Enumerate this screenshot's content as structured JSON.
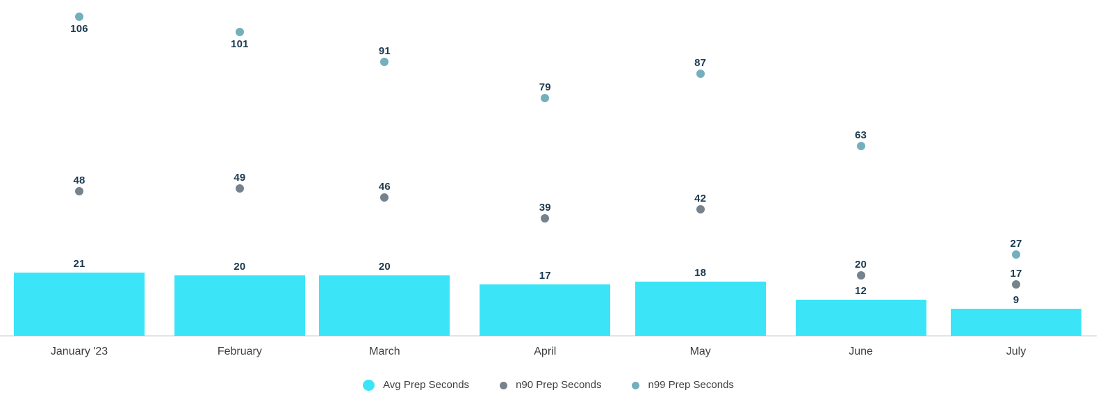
{
  "chart_data": {
    "type": "bar",
    "subtype": "combo-bar-with-points",
    "title": "",
    "xlabel": "",
    "ylabel": "",
    "categories": [
      "January '23",
      "February",
      "March",
      "April",
      "May",
      "June",
      "July"
    ],
    "series": [
      {
        "name": "Avg Prep Seconds",
        "render": "bar",
        "color": "#3BE5F7",
        "values": [
          21,
          20,
          20,
          17,
          18,
          12,
          9
        ]
      },
      {
        "name": "n90 Prep Seconds",
        "render": "point",
        "color": "#76828C",
        "values": [
          48,
          49,
          46,
          39,
          42,
          20,
          17
        ],
        "label_position": [
          "above",
          "above",
          "above",
          "above",
          "above",
          "above",
          "above"
        ]
      },
      {
        "name": "n99 Prep Seconds",
        "render": "point",
        "color": "#74AFBD",
        "values": [
          106,
          101,
          91,
          79,
          87,
          63,
          27
        ],
        "label_position": [
          "below",
          "below",
          "above",
          "above",
          "above",
          "above",
          "above"
        ]
      }
    ],
    "ylim": [
      0,
      111
    ],
    "grid": false,
    "y_axis_visible": false,
    "x_axis_time_scale": true,
    "data_labels": true,
    "legend_position": "bottom",
    "colors": {
      "data_label": "#1C3A50",
      "axis_label": "#3C4043",
      "legend_label": "#3C4043",
      "axis_line": "#E1E4EA",
      "background": "#FFFFFF"
    }
  }
}
